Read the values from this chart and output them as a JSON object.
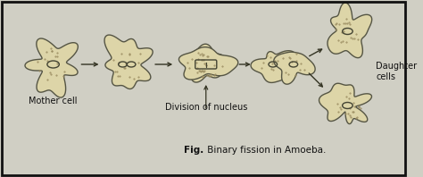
{
  "bg_color": "#d0cfc4",
  "border_color": "#111111",
  "cell_color": "#ddd5a8",
  "cell_edge_color": "#555544",
  "nucleus_color": "#444433",
  "arrow_color": "#333322",
  "text_color": "#111111",
  "fig_label_bold": "Fig.",
  "fig_label_rest": " Binary fission in Amoeba.",
  "label_mother": "Mother cell",
  "label_division": "Division of nucleus",
  "label_daughter": "Daughter\ncells",
  "figsize": [
    4.74,
    1.98
  ],
  "dpi": 100
}
